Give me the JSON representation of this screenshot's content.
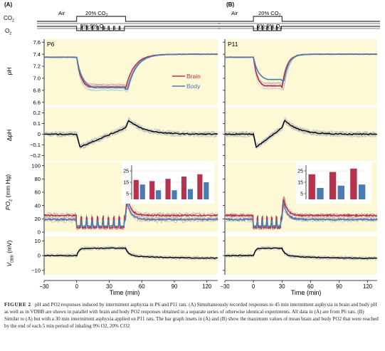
{
  "panels": [
    {
      "label": "(A)",
      "age": "P6",
      "stimulus": {
        "co2_air": "Air",
        "co2_high": "20% CO",
        "co2_high_sub": "2",
        "o2_low": "5%-9% O",
        "o2_low_sub": "2",
        "row_co2": "CO",
        "row_co2_sub": "2",
        "row_o2": "O",
        "row_o2_sub": "2",
        "t_on": 0,
        "t_off": 45,
        "n_episodes": 9
      },
      "legend": [
        "Brain",
        "Body"
      ],
      "inset_bars": {
        "brain": [
          17,
          16,
          18,
          20,
          22
        ],
        "body": [
          13,
          8,
          8,
          9,
          15
        ],
        "yticks": [
          "25",
          "15",
          "5"
        ]
      }
    },
    {
      "label": "(B)",
      "age": "P11",
      "stimulus": {
        "co2_air": "Air",
        "co2_high": "20% CO",
        "co2_high_sub": "2",
        "o2_low": "5%-9% O",
        "o2_low_sub": "2",
        "t_on": 0,
        "t_off": 30,
        "n_episodes": 6
      },
      "inset_bars": {
        "brain": [
          22,
          24,
          27
        ],
        "body": [
          10,
          12,
          13
        ],
        "yticks": [
          "25",
          "15",
          "5"
        ]
      }
    }
  ],
  "axes": {
    "ph": {
      "label": "pH",
      "ticks": [
        "7.6",
        "7.4",
        "7.2",
        "7.0",
        "6.8",
        "6.6"
      ],
      "range": [
        6.55,
        7.65
      ]
    },
    "dph": {
      "label": "ΔpH",
      "ticks": [
        "0.2",
        "0.1",
        "0",
        "−0.1",
        "−0.2"
      ],
      "range": [
        -0.25,
        0.25
      ]
    },
    "po2": {
      "label": "PO",
      "label_sub": "2",
      "label_unit": " (mm Hg)",
      "ticks": [
        "100",
        "80",
        "60",
        "40",
        "20",
        "0"
      ],
      "range": [
        0,
        105
      ]
    },
    "vdc": {
      "label": "V",
      "label_sub": "DBB",
      "label_unit": " (mV)",
      "ticks": [
        "10",
        "0",
        "−10"
      ],
      "range": [
        -13,
        13
      ]
    },
    "time": {
      "label": "Time (min)",
      "ticks": [
        "−30",
        "0",
        "30",
        "60",
        "90",
        "120"
      ],
      "range": [
        -30,
        130
      ]
    }
  },
  "colors": {
    "brain": "#b5334d",
    "body": "#4a7cb3",
    "panel_bg": "#fdf9d7",
    "trace": "#000000",
    "gray": "#bcbcbc"
  },
  "caption": {
    "label": "FIGURE 2",
    "text": "pH and PO2 responses induced by intermittent asphyxia in P6 and P11 rats. (A) Simultaneously recorded responses to 45 min intermittent asphyxia in brain and body pH as well as in VDBB are shown in parallel with brain and body PO2 responses obtained in a separate series of otherwise identical experiments. All data in (A) are from P6 rats. (B) Similar to (A) but with a 30 min intermittent asphyxia applied on P11 rats. The bar graph insets in (A) and (B) show the maximum values of mean brain and body PO2 that were reached by the end of each 5 min period of inhaling 9% O2, 20% CO2"
  }
}
